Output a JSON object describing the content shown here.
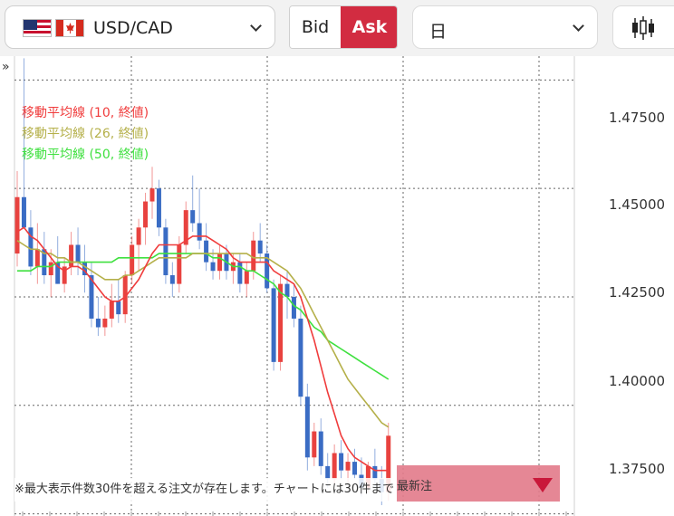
{
  "toolbar": {
    "pair": "USD/CAD",
    "bid_label": "Bid",
    "ask_label": "Ask",
    "period": "日",
    "chart_type_icon": "candlestick-icon",
    "dropdown_icon": "chevron-down-icon"
  },
  "colors": {
    "ask_active": "#d22c41",
    "candle_up": "#e8423f",
    "candle_down": "#3a6cc4",
    "ma10": "#f03c3c",
    "ma26": "#b5b04a",
    "ma50": "#3fe03f",
    "order_tag": "#e27a8a"
  },
  "legend": [
    {
      "label": "移動平均線 (10, 終値)"
    },
    {
      "label": "移動平均線 (26, 終値)"
    },
    {
      "label": "移動平均線 (50, 終値)"
    }
  ],
  "notice": "※最大表示件数30件を超える注文が存在します。チャートには30件まで",
  "order_tag_text": "最新注",
  "expand_icon": "»",
  "chart_data": {
    "type": "candlestick",
    "ylim": [
      1.3745,
      1.4805
    ],
    "yticks": [
      "1.47500",
      "1.45000",
      "1.42500",
      "1.40000",
      "1.37500"
    ],
    "ytick_values": [
      1.475,
      1.45,
      1.425,
      1.4,
      1.375
    ],
    "grid": true,
    "candles": [
      [
        1.435,
        1.454,
        1.432,
        1.448
      ],
      [
        1.448,
        1.48,
        1.442,
        1.441
      ],
      [
        1.441,
        1.445,
        1.43,
        1.432
      ],
      [
        1.432,
        1.442,
        1.428,
        1.436
      ],
      [
        1.436,
        1.44,
        1.428,
        1.43
      ],
      [
        1.43,
        1.436,
        1.425,
        1.433
      ],
      [
        1.433,
        1.439,
        1.428,
        1.428
      ],
      [
        1.428,
        1.434,
        1.426,
        1.432
      ],
      [
        1.432,
        1.44,
        1.43,
        1.437
      ],
      [
        1.437,
        1.441,
        1.43,
        1.433
      ],
      [
        1.433,
        1.437,
        1.426,
        1.43
      ],
      [
        1.43,
        1.433,
        1.418,
        1.42
      ],
      [
        1.42,
        1.425,
        1.416,
        1.418
      ],
      [
        1.418,
        1.423,
        1.416,
        1.42
      ],
      [
        1.42,
        1.428,
        1.418,
        1.424
      ],
      [
        1.424,
        1.429,
        1.419,
        1.421
      ],
      [
        1.421,
        1.431,
        1.419,
        1.43
      ],
      [
        1.43,
        1.439,
        1.428,
        1.437
      ],
      [
        1.437,
        1.443,
        1.431,
        1.441
      ],
      [
        1.441,
        1.449,
        1.437,
        1.447
      ],
      [
        1.447,
        1.455,
        1.443,
        1.45
      ],
      [
        1.45,
        1.452,
        1.439,
        1.441
      ],
      [
        1.441,
        1.443,
        1.428,
        1.43
      ],
      [
        1.43,
        1.433,
        1.425,
        1.428
      ],
      [
        1.428,
        1.439,
        1.426,
        1.437
      ],
      [
        1.437,
        1.447,
        1.435,
        1.445
      ],
      [
        1.445,
        1.453,
        1.44,
        1.442
      ],
      [
        1.442,
        1.45,
        1.436,
        1.438
      ],
      [
        1.438,
        1.442,
        1.431,
        1.433
      ],
      [
        1.433,
        1.436,
        1.429,
        1.431
      ],
      [
        1.431,
        1.437,
        1.429,
        1.435
      ],
      [
        1.435,
        1.437,
        1.429,
        1.431
      ],
      [
        1.431,
        1.435,
        1.428,
        1.433
      ],
      [
        1.433,
        1.435,
        1.426,
        1.428
      ],
      [
        1.428,
        1.433,
        1.425,
        1.431
      ],
      [
        1.431,
        1.44,
        1.429,
        1.438
      ],
      [
        1.438,
        1.442,
        1.433,
        1.435
      ],
      [
        1.435,
        1.437,
        1.426,
        1.427
      ],
      [
        1.427,
        1.429,
        1.408,
        1.41
      ],
      [
        1.41,
        1.43,
        1.408,
        1.428
      ],
      [
        1.428,
        1.431,
        1.42,
        1.425
      ],
      [
        1.425,
        1.428,
        1.418,
        1.42
      ],
      [
        1.42,
        1.423,
        1.4,
        1.402
      ],
      [
        1.402,
        1.405,
        1.385,
        1.388
      ],
      [
        1.388,
        1.396,
        1.386,
        1.394
      ],
      [
        1.394,
        1.397,
        1.384,
        1.386
      ],
      [
        1.386,
        1.389,
        1.381,
        1.383
      ],
      [
        1.383,
        1.391,
        1.382,
        1.389
      ],
      [
        1.389,
        1.392,
        1.383,
        1.385
      ],
      [
        1.385,
        1.389,
        1.382,
        1.387
      ],
      [
        1.387,
        1.39,
        1.383,
        1.384
      ],
      [
        1.384,
        1.388,
        1.379,
        1.381
      ],
      [
        1.381,
        1.387,
        1.38,
        1.386
      ],
      [
        1.386,
        1.39,
        1.381,
        1.383
      ],
      [
        1.383,
        1.386,
        1.377,
        1.38
      ],
      [
        1.38,
        1.396,
        1.378,
        1.393
      ]
    ],
    "ma10": [
      1.44,
      1.441,
      1.439,
      1.438,
      1.436,
      1.434,
      1.432,
      1.431,
      1.432,
      1.432,
      1.431,
      1.429,
      1.427,
      1.425,
      1.424,
      1.424,
      1.425,
      1.427,
      1.429,
      1.432,
      1.435,
      1.437,
      1.437,
      1.437,
      1.437,
      1.438,
      1.439,
      1.439,
      1.439,
      1.438,
      1.437,
      1.436,
      1.434,
      1.433,
      1.433,
      1.433,
      1.433,
      1.433,
      1.431,
      1.43,
      1.429,
      1.428,
      1.425,
      1.42,
      1.415,
      1.409,
      1.403,
      1.398,
      1.393,
      1.39,
      1.388,
      1.387,
      1.386,
      1.385,
      1.385,
      1.385
    ],
    "ma26": [
      1.438,
      1.437,
      1.436,
      1.436,
      1.435,
      1.435,
      1.434,
      1.434,
      1.433,
      1.433,
      1.432,
      1.431,
      1.43,
      1.429,
      1.429,
      1.429,
      1.43,
      1.43,
      1.431,
      1.432,
      1.433,
      1.434,
      1.434,
      1.434,
      1.434,
      1.434,
      1.435,
      1.435,
      1.435,
      1.435,
      1.435,
      1.435,
      1.435,
      1.435,
      1.435,
      1.434,
      1.434,
      1.434,
      1.433,
      1.432,
      1.431,
      1.429,
      1.427,
      1.424,
      1.421,
      1.418,
      1.415,
      1.412,
      1.409,
      1.406,
      1.404,
      1.402,
      1.4,
      1.398,
      1.396,
      1.395
    ],
    "ma50": [
      1.431,
      1.431,
      1.431,
      1.432,
      1.432,
      1.432,
      1.433,
      1.433,
      1.433,
      1.433,
      1.433,
      1.433,
      1.433,
      1.433,
      1.433,
      1.434,
      1.434,
      1.434,
      1.434,
      1.434,
      1.434,
      1.435,
      1.435,
      1.435,
      1.435,
      1.435,
      1.435,
      1.435,
      1.435,
      1.434,
      1.434,
      1.433,
      1.432,
      1.432,
      1.431,
      1.431,
      1.43,
      1.429,
      1.428,
      1.426,
      1.425,
      1.423,
      1.422,
      1.42,
      1.418,
      1.417,
      1.415,
      1.414,
      1.413,
      1.412,
      1.411,
      1.41,
      1.409,
      1.408,
      1.407,
      1.406
    ]
  }
}
